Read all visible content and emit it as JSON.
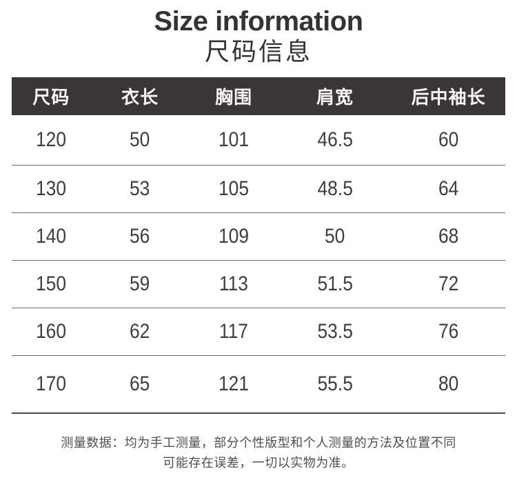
{
  "page": {
    "title_en": "Size information",
    "title_cn": "尺码信息"
  },
  "table": {
    "columns": [
      "尺码",
      "衣长",
      "胸围",
      "肩宽",
      "后中袖长"
    ],
    "rows": [
      [
        "120",
        "50",
        "101",
        "46.5",
        "60"
      ],
      [
        "130",
        "53",
        "105",
        "48.5",
        "64"
      ],
      [
        "140",
        "56",
        "109",
        "50",
        "68"
      ],
      [
        "150",
        "59",
        "113",
        "51.5",
        "72"
      ],
      [
        "160",
        "62",
        "117",
        "53.5",
        "76"
      ],
      [
        "170",
        "65",
        "121",
        "55.5",
        "80"
      ]
    ]
  },
  "footer": {
    "line1": "测量数据：均为手工测量，部分个性版型和个人测量的方法及位置不同",
    "line2": "可能存在误差，一切以实物为准。"
  },
  "colors": {
    "header_bg": "#3a3536",
    "header_text": "#f7f6f6",
    "cell_text": "#3e3e3e",
    "row_divider": "#6b6b6b",
    "table_bottom_border": "#4c4c4c",
    "title_text": "#333333",
    "footer_text": "#4f4f4f"
  }
}
